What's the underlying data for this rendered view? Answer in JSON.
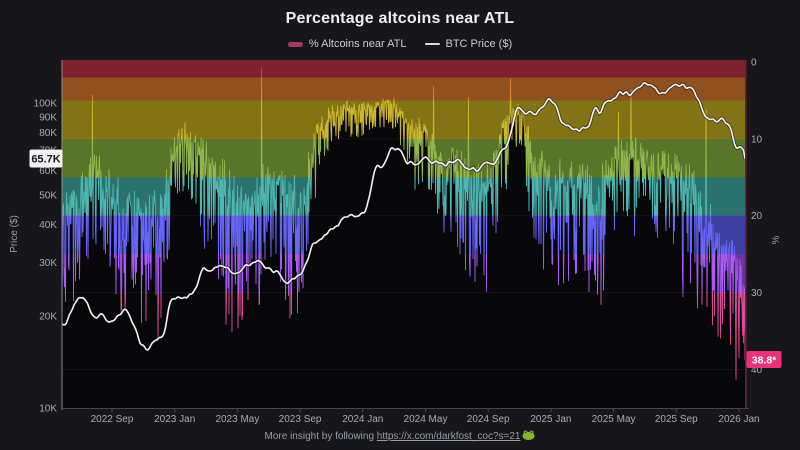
{
  "title": "Percentage altcoins near ATL",
  "legend": {
    "altcoins_label": "% Altcoins near ATL",
    "altcoins_swatch_color": "#a33768",
    "btc_label": "BTC Price ($)",
    "btc_swatch_color": "#dcdce0"
  },
  "footer": {
    "prefix": "More insight by following ",
    "link": "https://x.com/darkfost_coc?s=21",
    "emoji": "frog-icon"
  },
  "annotations": {
    "price_current": {
      "label": "65.7K",
      "value_k": 65.7,
      "bg": "#f2f2f2",
      "fg": "#17171b"
    },
    "pct_current": {
      "label": "38.8*",
      "value_pct": 38.8,
      "bg": "#e73379",
      "fg": "#ffffff"
    }
  },
  "axes": {
    "price": {
      "title": "Price ($)",
      "scale": "log",
      "ticks": [
        {
          "label": "100K",
          "value_k": 100
        },
        {
          "label": "90K",
          "value_k": 90
        },
        {
          "label": "80K",
          "value_k": 80
        },
        {
          "label": "70K",
          "value_k": 70
        },
        {
          "label": "60K",
          "value_k": 60
        },
        {
          "label": "50K",
          "value_k": 50
        },
        {
          "label": "40K",
          "value_k": 40
        },
        {
          "label": "30K",
          "value_k": 30
        },
        {
          "label": "20K",
          "value_k": 20
        },
        {
          "label": "10K",
          "value_k": 10
        }
      ]
    },
    "pct": {
      "title": "%",
      "inverted": true,
      "ticks": [
        {
          "label": "0",
          "value": 0
        },
        {
          "label": "10",
          "value": 10
        },
        {
          "label": "20",
          "value": 20
        },
        {
          "label": "30",
          "value": 30
        },
        {
          "label": "40",
          "value": 40
        }
      ]
    },
    "x": {
      "ticks": [
        {
          "label": "2022 Sep",
          "month_index": 3
        },
        {
          "label": "2023 Jan",
          "month_index": 7
        },
        {
          "label": "2023 May",
          "month_index": 11
        },
        {
          "label": "2023 Sep",
          "month_index": 15
        },
        {
          "label": "2024 Jan",
          "month_index": 19
        },
        {
          "label": "2024 May",
          "month_index": 23
        },
        {
          "label": "2024 Sep",
          "month_index": 27
        },
        {
          "label": "2025 Jan",
          "month_index": 31
        },
        {
          "label": "2025 May",
          "month_index": 35
        },
        {
          "label": "2025 Sep",
          "month_index": 39
        },
        {
          "label": "2026 Jan",
          "month_index": 43
        }
      ]
    }
  },
  "chart_data": {
    "type": "line",
    "title": "Percentage altcoins near ATL",
    "x_start_month": "2022-06",
    "x_end_month": "2026-02",
    "ylabel_left": "Price ($)",
    "ylabel_right": "%",
    "price_axis_range_k": [
      10,
      130
    ],
    "pct_axis_range": [
      0,
      45
    ],
    "grid_pct_lines": [
      10,
      20,
      30,
      40
    ],
    "bands": [
      {
        "from_pct": 0,
        "to_pct": 2,
        "color": "#7e232e"
      },
      {
        "from_pct": 2,
        "to_pct": 5,
        "color": "#8f5120"
      },
      {
        "from_pct": 5,
        "to_pct": 10,
        "color": "#827416"
      },
      {
        "from_pct": 10,
        "to_pct": 15,
        "color": "#5a742a"
      },
      {
        "from_pct": 15,
        "to_pct": 20,
        "color": "#2c7370"
      },
      {
        "from_pct": 20,
        "to_pct": 25,
        "color": "#3e3da0"
      },
      {
        "from_pct": 25,
        "to_pct": 30,
        "color": "#6a35a0"
      },
      {
        "from_pct": 30,
        "to_pct": 35,
        "color": "#8c2c5f"
      },
      {
        "from_pct": 35,
        "to_pct": 40,
        "color": "#8c2350"
      },
      {
        "from_pct": 40,
        "to_pct": 45,
        "color": "#a81e52"
      }
    ],
    "series": [
      {
        "name": "% Altcoins near ATL",
        "axis": "pct",
        "style": "gradient-area-inverted",
        "monthly_typical_pct": [
          20,
          15,
          14,
          17,
          18,
          21,
          19,
          10,
          9,
          12,
          14,
          18,
          18,
          14,
          16,
          18,
          9,
          6.5,
          6,
          6,
          5.5,
          5.5,
          8,
          9,
          12,
          13,
          16,
          15,
          8,
          6,
          12,
          14,
          15,
          15,
          17,
          12,
          12,
          11,
          13,
          14,
          16,
          21,
          24,
          28,
          38.8
        ],
        "monthly_spike_max_pct": [
          36,
          31,
          30,
          34,
          35,
          38,
          36,
          22,
          18,
          28,
          33,
          38,
          34,
          28,
          33,
          38,
          18,
          11,
          10,
          11,
          9,
          10,
          16,
          18,
          24,
          26,
          33,
          32,
          18,
          12,
          26,
          30,
          32,
          31,
          35,
          22,
          23,
          22,
          26,
          29,
          33,
          38,
          40,
          42,
          38.8
        ],
        "glitch_low_spikes": [
          {
            "month_index": 12.55,
            "pct": 0.7
          },
          {
            "month_index": 35.3,
            "pct": 6.5
          }
        ],
        "last_value_pct": 38.8
      },
      {
        "name": "BTC Price ($)",
        "axis": "price",
        "style": "line",
        "color": "#f4f4f6",
        "monthly_close_k": [
          19.0,
          23.3,
          20.0,
          19.4,
          20.5,
          16.0,
          16.6,
          23.1,
          23.5,
          28.5,
          29.2,
          27.2,
          30.5,
          29.2,
          26.1,
          27.0,
          34.6,
          37.7,
          42.3,
          42.6,
          61.2,
          71.3,
          63.8,
          67.5,
          62.7,
          64.6,
          59.0,
          63.3,
          70.2,
          96.4,
          93.4,
          102.4,
          84.3,
          82.5,
          94.2,
          104.6,
          107.1,
          115.8,
          108.2,
          114.0,
          110.0,
          91.0,
          87.0,
          72.0,
          65.7
        ],
        "last_value_k": 65.7
      }
    ]
  },
  "colors": {
    "page_bg": "#17171b",
    "plot_bg": "#08080b",
    "grid": "#ffffff",
    "tick_text": "#a9a9b1",
    "axis_title_text": "#9a9aa2",
    "spine_left": "#8b8b93",
    "spine_bottom": "#46464e",
    "spine_right": "#5e2538",
    "btc_line": "#f4f4f6"
  }
}
